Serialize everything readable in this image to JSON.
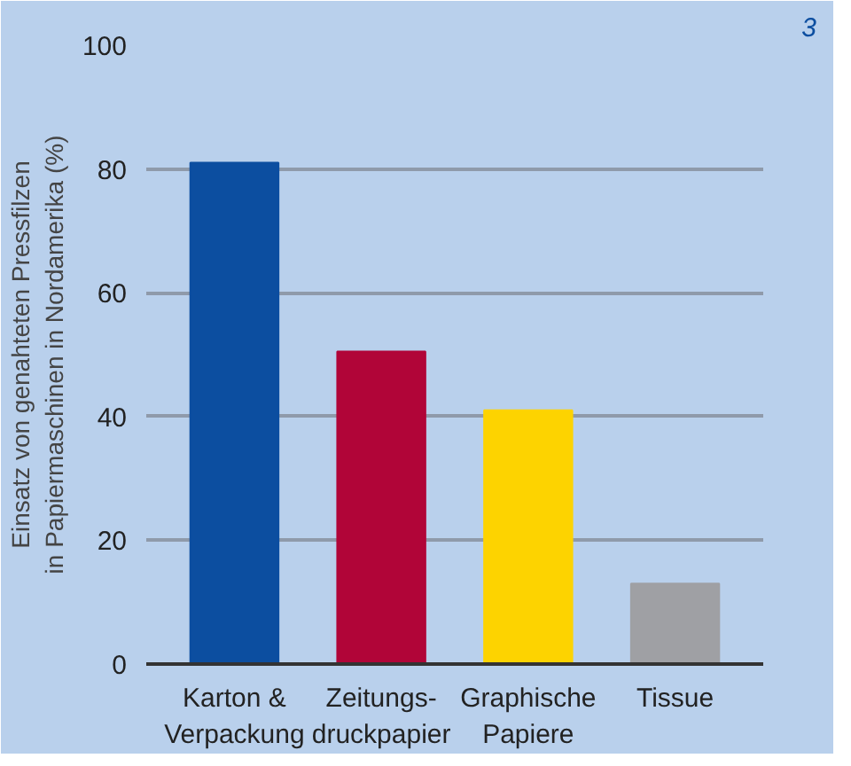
{
  "chart_data": {
    "type": "bar",
    "categories": [
      "Karton &\nVerpackung",
      "Zeitungs-\ndruckpapier",
      "Graphische\nPapiere",
      "Tissue"
    ],
    "values": [
      81,
      50.5,
      41,
      13
    ],
    "colors": [
      "#0c4ea0",
      "#b10538",
      "#fdd300",
      "#9fa0a4"
    ],
    "ylabel": "Einsatz von genahteten Pressfilzen\nin Papiermaschinen in Nordamerika (%)",
    "ylim": [
      0,
      100
    ],
    "yticks": [
      0,
      20,
      40,
      60,
      80,
      100
    ],
    "grid": "y",
    "annotations": [
      "3"
    ]
  }
}
